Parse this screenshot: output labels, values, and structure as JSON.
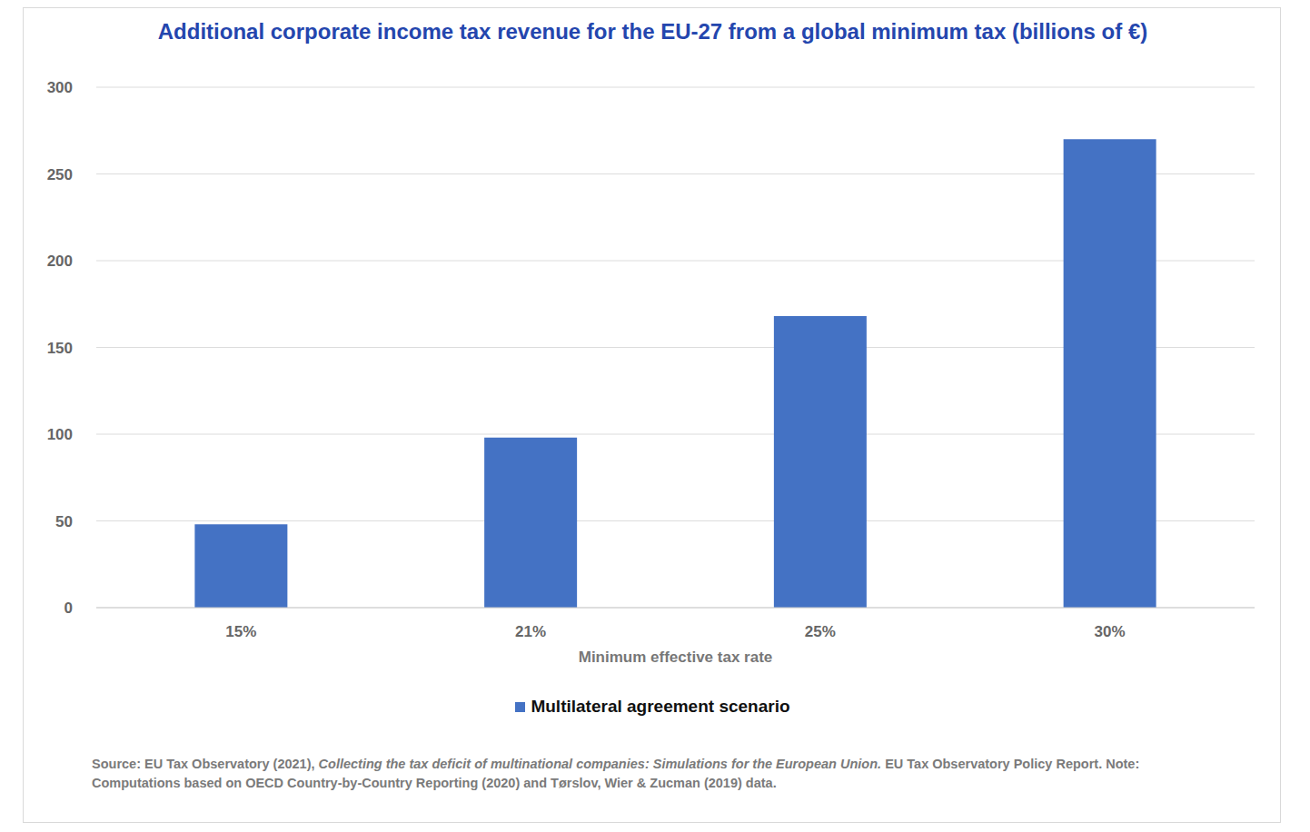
{
  "chart_data": {
    "type": "bar",
    "title": "Additional corporate income tax revenue for the EU-27 from a global minimum tax (billions of €)",
    "xlabel": "Minimum effective tax rate",
    "categories": [
      "15%",
      "21%",
      "25%",
      "30%"
    ],
    "series": [
      {
        "name": "Multilateral agreement scenario",
        "color": "#4472c4",
        "values": [
          48,
          98,
          168,
          270
        ]
      }
    ],
    "ylim": [
      0,
      300
    ],
    "yticks": [
      0,
      50,
      100,
      150,
      200,
      250,
      300
    ],
    "grid": true,
    "legend": "bottom",
    "source": [
      "Source: EU Tax Observatory (2021),",
      "Collecting the tax deficit of multinational companies: Simulations for the European Union.",
      "EU Tax Observatory Policy Report. Note: Computations based on OECD Country-by-Country Reporting (2020) and Tørslov, Wier & Zucman (2019) data."
    ]
  }
}
